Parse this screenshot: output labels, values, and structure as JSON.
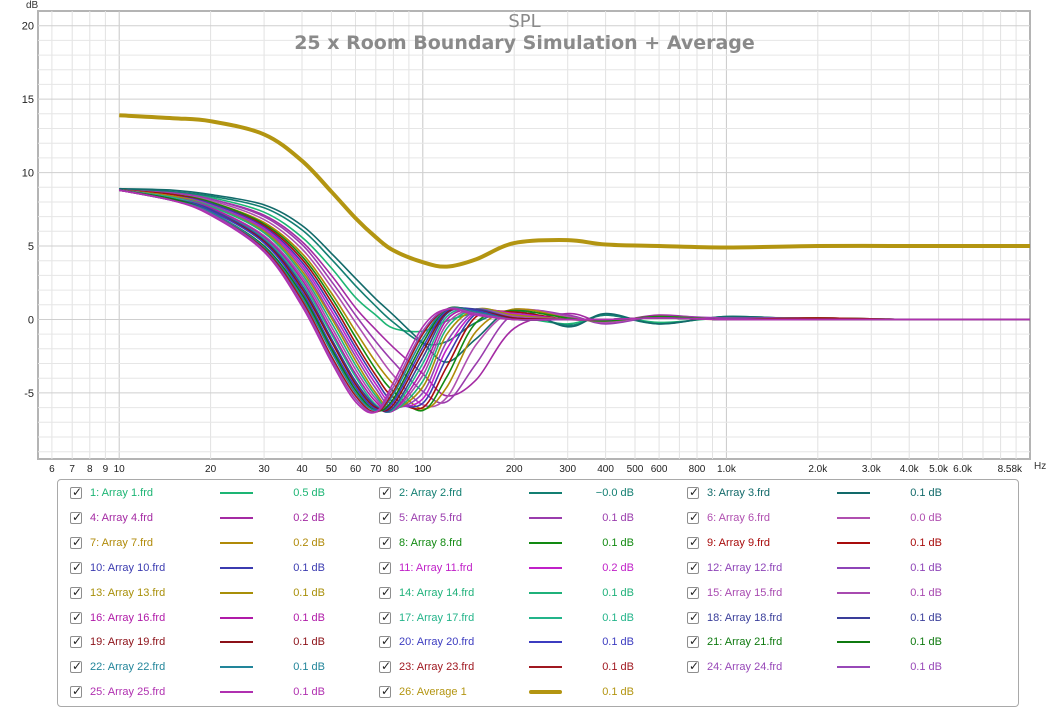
{
  "chart_data": {
    "type": "line",
    "title": "SPL",
    "subtitle": "25 x Room Boundary Simulation + Average",
    "ylabel": "dB",
    "xlabel": "Hz",
    "xscale": "log",
    "xlim": [
      5.4,
      10000
    ],
    "ylim": [
      -9.5,
      21
    ],
    "grid": true,
    "legend_placement": "bottom",
    "x_tick_values": [
      6,
      7,
      8,
      9,
      10,
      20,
      30,
      40,
      50,
      60,
      70,
      80,
      100,
      200,
      300,
      400,
      500,
      600,
      800,
      1000,
      2000,
      3000,
      4000,
      5000,
      6000,
      8580
    ],
    "x_tick_labels": [
      "6",
      "7",
      "8",
      "9",
      "10",
      "20",
      "30",
      "40",
      "50",
      "60",
      "70",
      "80",
      "100",
      "200",
      "300",
      "400",
      "500",
      "600",
      "800",
      "1.0k",
      "2.0k",
      "3.0k",
      "4.0k",
      "5.0k",
      "6.0k",
      "8.58k"
    ],
    "y_tick_values": [
      20,
      15,
      10,
      5,
      0,
      -5
    ],
    "y_tick_labels": [
      "20",
      "15",
      "10",
      "5",
      "0",
      "-5"
    ],
    "x": [
      10,
      15,
      20,
      30,
      40,
      50,
      60,
      70,
      80,
      100,
      120,
      150,
      200,
      300,
      400,
      600,
      1000,
      2000,
      4000,
      8000,
      10000
    ],
    "series": [
      {
        "name": "1: Array 1.frd",
        "color": "#1db574",
        "value": "0.5 dB",
        "values": [
          8.8,
          8.6,
          8.3,
          7.3,
          5.6,
          3.5,
          1.5,
          0.3,
          -0.6,
          -0.8,
          -0.1,
          0.4,
          0.2,
          -0.3,
          0.3,
          -0.2,
          0.1,
          0.1,
          0.0,
          0.0,
          0.0
        ]
      },
      {
        "name": "2: Array 2.frd",
        "color": "#137f72",
        "value": "−0.0 dB",
        "values": [
          8.9,
          8.7,
          8.4,
          7.6,
          6.1,
          4.1,
          2.3,
          0.9,
          -0.2,
          -1.6,
          -1.5,
          -0.2,
          0.6,
          -0.4,
          0.3,
          -0.3,
          0.2,
          0.0,
          0.0,
          0.0,
          0.0
        ]
      },
      {
        "name": "3: Array 3.frd",
        "color": "#126a6a",
        "value": "0.1 dB",
        "values": [
          8.9,
          8.8,
          8.5,
          7.8,
          6.4,
          4.5,
          2.8,
          1.4,
          0.3,
          -1.6,
          -2.9,
          -1.3,
          0.7,
          -0.5,
          0.4,
          -0.3,
          0.2,
          0.0,
          0.0,
          0.0,
          0.0
        ]
      },
      {
        "name": "4: Array 4.frd",
        "color": "#a42aa3",
        "value": "0.2 dB",
        "values": [
          8.8,
          8.6,
          8.2,
          7.1,
          5.3,
          3.0,
          0.8,
          -0.7,
          -1.9,
          -3.7,
          -5.2,
          -4.1,
          -0.6,
          0.4,
          -0.2,
          0.3,
          0.0,
          0.1,
          0.0,
          0.0,
          0.0
        ]
      },
      {
        "name": "5: Array 5.frd",
        "color": "#9a3cad",
        "value": "0.1 dB",
        "values": [
          8.8,
          8.6,
          8.2,
          7.0,
          5.1,
          2.6,
          0.3,
          -1.5,
          -2.9,
          -4.9,
          -5.6,
          -3.0,
          0.4,
          0.3,
          -0.3,
          0.2,
          0.1,
          0.1,
          0.0,
          0.0,
          0.0
        ]
      },
      {
        "name": "6: Array 6.frd",
        "color": "#b04fb0",
        "value": "0.0 dB",
        "values": [
          8.8,
          8.5,
          8.1,
          6.8,
          4.8,
          2.2,
          -0.2,
          -2.2,
          -3.8,
          -5.8,
          -5.3,
          -1.7,
          0.6,
          0.2,
          -0.2,
          0.2,
          0.0,
          0.1,
          0.0,
          0.0,
          0.0
        ]
      },
      {
        "name": "7: Array 7.frd",
        "color": "#b08a08",
        "value": "0.2 dB",
        "values": [
          8.8,
          8.5,
          8.0,
          6.6,
          4.5,
          1.8,
          -0.8,
          -2.9,
          -4.4,
          -6.1,
          -4.6,
          -0.8,
          0.7,
          0.1,
          -0.1,
          0.2,
          0.0,
          0.1,
          0.0,
          0.0,
          0.0
        ]
      },
      {
        "name": "8: Array 8.frd",
        "color": "#128a12",
        "value": "0.1 dB",
        "values": [
          8.8,
          8.5,
          8.0,
          6.5,
          4.3,
          1.5,
          -1.2,
          -3.4,
          -4.9,
          -6.2,
          -3.9,
          -0.2,
          0.6,
          0.1,
          -0.1,
          0.2,
          0.0,
          0.1,
          0.0,
          0.0,
          0.0
        ]
      },
      {
        "name": "9: Array 9.frd",
        "color": "#a80c0c",
        "value": "0.1 dB",
        "values": [
          8.8,
          8.5,
          7.9,
          6.4,
          4.1,
          1.2,
          -1.6,
          -3.8,
          -5.3,
          -6.0,
          -3.2,
          0.2,
          0.5,
          0.0,
          0.0,
          0.1,
          0.0,
          0.1,
          0.0,
          0.0,
          0.0
        ]
      },
      {
        "name": "10: Array 10.frd",
        "color": "#3b3bb0",
        "value": "0.1 dB",
        "values": [
          8.8,
          8.4,
          7.9,
          6.3,
          3.9,
          0.9,
          -1.9,
          -4.1,
          -5.6,
          -5.7,
          -2.6,
          0.4,
          0.4,
          0.0,
          0.0,
          0.1,
          0.0,
          0.0,
          0.0,
          0.0,
          0.0
        ]
      },
      {
        "name": "11: Array 11.frd",
        "color": "#c020c8",
        "value": "0.2 dB",
        "values": [
          8.8,
          8.4,
          7.8,
          6.2,
          3.7,
          0.6,
          -2.2,
          -4.4,
          -5.8,
          -5.4,
          -2.0,
          0.5,
          0.4,
          0.0,
          0.0,
          0.1,
          0.0,
          0.0,
          0.0,
          0.0,
          0.0
        ]
      },
      {
        "name": "12: Array 12.frd",
        "color": "#8e44b8",
        "value": "0.1 dB",
        "values": [
          8.8,
          8.4,
          7.8,
          6.1,
          3.5,
          0.3,
          -2.5,
          -4.7,
          -6.0,
          -5.0,
          -1.5,
          0.6,
          0.3,
          0.0,
          0.0,
          0.1,
          0.0,
          0.0,
          0.0,
          0.0,
          0.0
        ]
      },
      {
        "name": "13: Array 13.frd",
        "color": "#a88f08",
        "value": "0.1 dB",
        "values": [
          8.8,
          8.4,
          7.7,
          6.0,
          3.3,
          0.1,
          -2.8,
          -5.0,
          -6.1,
          -4.6,
          -1.0,
          0.7,
          0.3,
          0.0,
          0.0,
          0.1,
          0.0,
          0.0,
          0.0,
          0.0,
          0.0
        ]
      },
      {
        "name": "14: Array 14.frd",
        "color": "#1fb17a",
        "value": "0.1 dB",
        "values": [
          8.8,
          8.3,
          7.7,
          5.9,
          3.1,
          -0.2,
          -3.1,
          -5.2,
          -6.2,
          -4.2,
          -0.6,
          0.7,
          0.2,
          0.0,
          0.0,
          0.1,
          0.0,
          0.0,
          0.0,
          0.0,
          0.0
        ]
      },
      {
        "name": "15: Array 15.frd",
        "color": "#a84ab0",
        "value": "0.1 dB",
        "values": [
          8.8,
          8.3,
          7.6,
          5.7,
          2.9,
          -0.5,
          -3.4,
          -5.4,
          -6.2,
          -3.8,
          -0.3,
          0.7,
          0.2,
          0.0,
          0.0,
          0.1,
          0.0,
          0.0,
          0.0,
          0.0,
          0.0
        ]
      },
      {
        "name": "16: Array 16.frd",
        "color": "#b01aa8",
        "value": "0.1 dB",
        "values": [
          8.8,
          8.3,
          7.6,
          5.6,
          2.7,
          -0.8,
          -3.7,
          -5.6,
          -6.2,
          -3.4,
          0.0,
          0.7,
          0.1,
          0.0,
          0.0,
          0.1,
          0.0,
          0.0,
          0.0,
          0.0,
          0.0
        ]
      },
      {
        "name": "17: Array 17.frd",
        "color": "#23b48a",
        "value": "0.1 dB",
        "values": [
          8.8,
          8.3,
          7.5,
          5.5,
          2.5,
          -1.0,
          -3.9,
          -5.8,
          -6.1,
          -3.0,
          0.2,
          0.7,
          0.1,
          0.0,
          0.0,
          0.1,
          0.0,
          0.0,
          0.0,
          0.0,
          0.0
        ]
      },
      {
        "name": "18: Array 18.frd",
        "color": "#3a3e9a",
        "value": "0.1 dB",
        "values": [
          8.8,
          8.2,
          7.5,
          5.4,
          2.3,
          -1.3,
          -4.2,
          -5.9,
          -6.0,
          -2.6,
          0.4,
          0.7,
          0.1,
          0.0,
          0.0,
          0.1,
          0.0,
          0.0,
          0.0,
          0.0,
          0.0
        ]
      },
      {
        "name": "19: Array 19.frd",
        "color": "#8c1018",
        "value": "0.1 dB",
        "values": [
          8.8,
          8.2,
          7.4,
          5.3,
          2.1,
          -1.5,
          -4.4,
          -6.0,
          -5.8,
          -2.2,
          0.5,
          0.6,
          0.1,
          0.0,
          0.0,
          0.1,
          0.0,
          0.0,
          0.0,
          0.0,
          0.0
        ]
      },
      {
        "name": "20: Array 20.frd",
        "color": "#3c3cc0",
        "value": "0.1 dB",
        "values": [
          8.8,
          8.2,
          7.4,
          5.2,
          1.9,
          -1.8,
          -4.6,
          -6.1,
          -5.6,
          -1.9,
          0.6,
          0.6,
          0.0,
          0.0,
          0.0,
          0.1,
          0.0,
          0.0,
          0.0,
          0.0,
          0.0
        ]
      },
      {
        "name": "21: Array 21.frd",
        "color": "#0f7a10",
        "value": "0.1 dB",
        "values": [
          8.8,
          8.2,
          7.3,
          5.0,
          1.7,
          -2.0,
          -4.8,
          -6.2,
          -5.4,
          -1.6,
          0.7,
          0.5,
          0.0,
          0.0,
          0.0,
          0.1,
          0.0,
          0.0,
          0.0,
          0.0,
          0.0
        ]
      },
      {
        "name": "22: Array 22.frd",
        "color": "#22859a",
        "value": "0.1 dB",
        "values": [
          8.8,
          8.1,
          7.3,
          4.9,
          1.5,
          -2.2,
          -5.0,
          -6.2,
          -5.1,
          -1.3,
          0.7,
          0.5,
          0.0,
          0.0,
          0.0,
          0.1,
          0.0,
          0.0,
          0.0,
          0.0,
          0.0
        ]
      },
      {
        "name": "23: Array 23.frd",
        "color": "#a01820",
        "value": "0.1 dB",
        "values": [
          8.8,
          8.1,
          7.2,
          4.8,
          1.3,
          -2.5,
          -5.2,
          -6.3,
          -4.9,
          -1.0,
          0.7,
          0.4,
          0.0,
          0.0,
          0.0,
          0.1,
          0.0,
          0.0,
          0.0,
          0.0,
          0.0
        ]
      },
      {
        "name": "24: Array 24.frd",
        "color": "#9848b8",
        "value": "0.1 dB",
        "values": [
          8.8,
          8.1,
          7.2,
          4.7,
          1.1,
          -2.7,
          -5.4,
          -6.3,
          -4.6,
          -0.8,
          0.7,
          0.4,
          0.0,
          0.0,
          0.0,
          0.1,
          0.0,
          0.0,
          0.0,
          0.0,
          0.0
        ]
      },
      {
        "name": "25: Array 25.frd",
        "color": "#b030b0",
        "value": "0.1 dB",
        "values": [
          8.8,
          8.1,
          7.1,
          4.6,
          0.9,
          -2.9,
          -5.6,
          -6.3,
          -4.3,
          -0.5,
          0.7,
          0.3,
          0.0,
          0.0,
          0.0,
          0.1,
          0.0,
          0.0,
          0.0,
          0.0,
          0.0
        ]
      },
      {
        "name": "26: Average 1",
        "color": "#b39511",
        "value": "0.1 dB",
        "values": [
          13.9,
          13.7,
          13.5,
          12.6,
          10.8,
          8.7,
          6.9,
          5.6,
          4.7,
          3.9,
          3.6,
          4.1,
          5.2,
          5.4,
          5.1,
          5.0,
          4.9,
          5.0,
          5.0,
          5.0,
          5.0
        ]
      }
    ]
  }
}
